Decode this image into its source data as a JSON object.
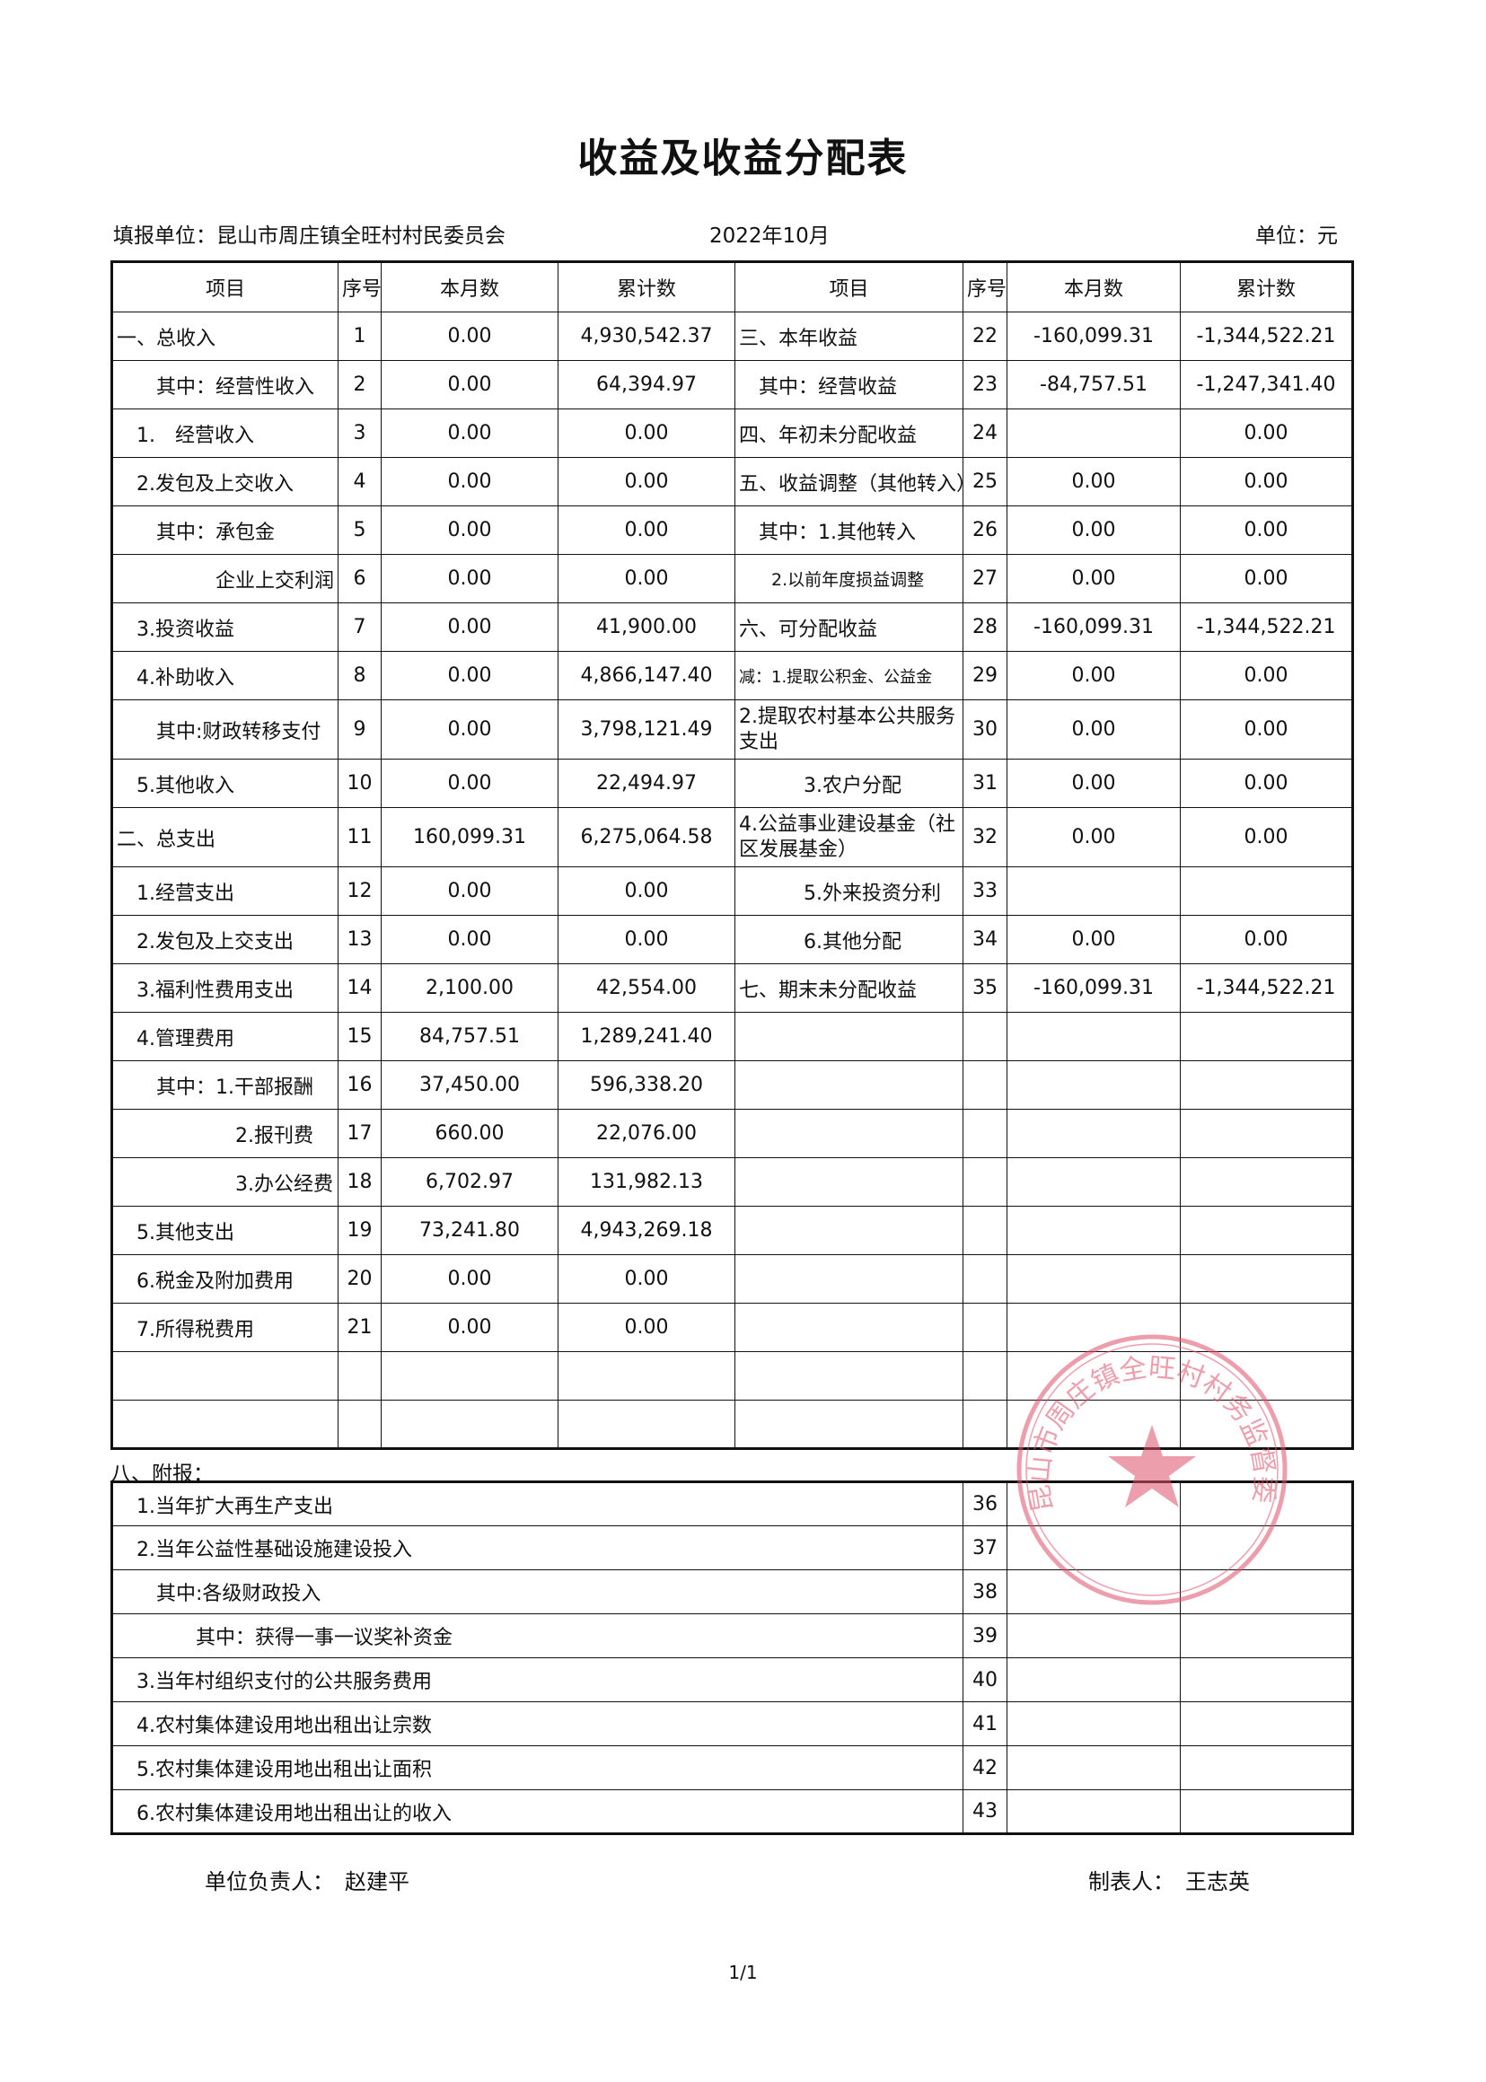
{
  "title": "收益及收益分配表",
  "unit_label": "填报单位：昆山市周庄镇全旺村村民委员会",
  "period": "2022年10月",
  "currency": "单位：元",
  "headers": [
    "项目",
    "序号",
    "本月数",
    "累计数",
    "项目",
    "序号",
    "本月数",
    "累计数"
  ],
  "left_rows": [
    {
      "item": "一、总收入",
      "no": "1",
      "month": "0.00",
      "cum": "4,930,542.37"
    },
    {
      "item": "　　其中：经营性收入",
      "no": "2",
      "month": "0.00",
      "cum": "64,394.97"
    },
    {
      "item": "　1.　经营收入",
      "no": "3",
      "month": "0.00",
      "cum": "0.00"
    },
    {
      "item": "　2.发包及上交收入",
      "no": "4",
      "month": "0.00",
      "cum": "0.00"
    },
    {
      "item": "　　其中：承包金",
      "no": "5",
      "month": "0.00",
      "cum": "0.00"
    },
    {
      "item": "企业上交利润",
      "no": "6",
      "month": "0.00",
      "cum": "0.00"
    },
    {
      "item": "　3.投资收益",
      "no": "7",
      "month": "0.00",
      "cum": "41,900.00"
    },
    {
      "item": "　4.补助收入",
      "no": "8",
      "month": "0.00",
      "cum": "4,866,147.40"
    },
    {
      "item": "　　其中:财政转移支付",
      "no": "9",
      "month": "0.00",
      "cum": "3,798,121.49"
    },
    {
      "item": "　5.其他收入",
      "no": "10",
      "month": "0.00",
      "cum": "22,494.97"
    },
    {
      "item": "二、总支出",
      "no": "11",
      "month": "160,099.31",
      "cum": "6,275,064.58"
    },
    {
      "item": "　1.经营支出",
      "no": "12",
      "month": "0.00",
      "cum": "0.00"
    },
    {
      "item": "　2.发包及上交支出",
      "no": "13",
      "month": "0.00",
      "cum": "0.00"
    },
    {
      "item": "　3.福利性费用支出",
      "no": "14",
      "month": "2,100.00",
      "cum": "42,554.00"
    },
    {
      "item": "　4.管理费用",
      "no": "15",
      "month": "84,757.51",
      "cum": "1,289,241.40"
    },
    {
      "item": "　　其中：1.干部报酬",
      "no": "16",
      "month": "37,450.00",
      "cum": "596,338.20"
    },
    {
      "item": "　　　　　　2.报刊费",
      "no": "17",
      "month": "660.00",
      "cum": "22,076.00"
    },
    {
      "item": "　　　　　　3.办公经费",
      "no": "18",
      "month": "6,702.97",
      "cum": "131,982.13"
    },
    {
      "item": "　5.其他支出",
      "no": "19",
      "month": "73,241.80",
      "cum": "4,943,269.18"
    },
    {
      "item": "　6.税金及附加费用",
      "no": "20",
      "month": "0.00",
      "cum": "0.00"
    },
    {
      "item": "　7.所得税费用",
      "no": "21",
      "month": "0.00",
      "cum": "0.00"
    },
    {
      "item": "",
      "no": "",
      "month": "",
      "cum": ""
    },
    {
      "item": "",
      "no": "",
      "month": "",
      "cum": ""
    }
  ],
  "right_rows": [
    {
      "item": "三、本年收益",
      "no": "22",
      "month": "-160,099.31",
      "cum": "-1,344,522.21"
    },
    {
      "item": "　其中：经营收益",
      "no": "23",
      "month": "-84,757.51",
      "cum": "-1,247,341.40"
    },
    {
      "item": "四、年初未分配收益",
      "no": "24",
      "month": "",
      "cum": "0.00"
    },
    {
      "item": "五、收益调整（其他转入）",
      "no": "25",
      "month": "0.00",
      "cum": "0.00"
    },
    {
      "item": "　其中：1.其他转入",
      "no": "26",
      "month": "0.00",
      "cum": "0.00"
    },
    {
      "item": "2.以前年度损益调整",
      "no": "27",
      "month": "0.00",
      "cum": "0.00"
    },
    {
      "item": "六、可分配收益",
      "no": "28",
      "month": "-160,099.31",
      "cum": "-1,344,522.21"
    },
    {
      "item": "减：1.提取公积金、公益金",
      "no": "29",
      "month": "0.00",
      "cum": "0.00"
    },
    {
      "item": "2.提取农村基本公共服务支出",
      "no": "30",
      "month": "0.00",
      "cum": "0.00"
    },
    {
      "item": "3.农户分配",
      "no": "31",
      "month": "0.00",
      "cum": "0.00"
    },
    {
      "item": "4.公益事业建设基金（社区发展基金）",
      "no": "32",
      "month": "0.00",
      "cum": "0.00"
    },
    {
      "item": "5.外来投资分利",
      "no": "33",
      "month": "",
      "cum": ""
    },
    {
      "item": "6.其他分配",
      "no": "34",
      "month": "0.00",
      "cum": "0.00"
    },
    {
      "item": "七、期末未分配收益",
      "no": "35",
      "month": "-160,099.31",
      "cum": "-1,344,522.21"
    },
    {
      "item": "",
      "no": "",
      "month": "",
      "cum": ""
    },
    {
      "item": "",
      "no": "",
      "month": "",
      "cum": ""
    },
    {
      "item": "",
      "no": "",
      "month": "",
      "cum": ""
    },
    {
      "item": "",
      "no": "",
      "month": "",
      "cum": ""
    },
    {
      "item": "",
      "no": "",
      "month": "",
      "cum": ""
    },
    {
      "item": "",
      "no": "",
      "month": "",
      "cum": ""
    },
    {
      "item": "",
      "no": "",
      "month": "",
      "cum": ""
    },
    {
      "item": "",
      "no": "",
      "month": "",
      "cum": ""
    },
    {
      "item": "",
      "no": "",
      "month": "",
      "cum": ""
    }
  ],
  "annex_label": "八、附报：",
  "annex_rows": [
    {
      "item": "　1.当年扩大再生产支出",
      "no": "36"
    },
    {
      "item": "　2.当年公益性基础设施建设投入",
      "no": "37"
    },
    {
      "item": "　　其中:各级财政投入",
      "no": "38"
    },
    {
      "item": "　　　　其中：获得一事一议奖补资金",
      "no": "39"
    },
    {
      "item": "　3.当年村组织支付的公共服务费用",
      "no": "40"
    },
    {
      "item": "　4.农村集体建设用地出租出让宗数",
      "no": "41"
    },
    {
      "item": "　5.农村集体建设用地出租出让面积",
      "no": "42"
    },
    {
      "item": "　6.农村集体建设用地出租出让的收入",
      "no": "43"
    }
  ],
  "responsible": "单位负责人：　赵建平",
  "preparer": "制表人：　王志英",
  "page_number": "1/1",
  "stamp": {
    "text": "昆山市周庄镇全旺村村务监督委员会",
    "color": "#e0506a",
    "icon": "star-seal"
  }
}
